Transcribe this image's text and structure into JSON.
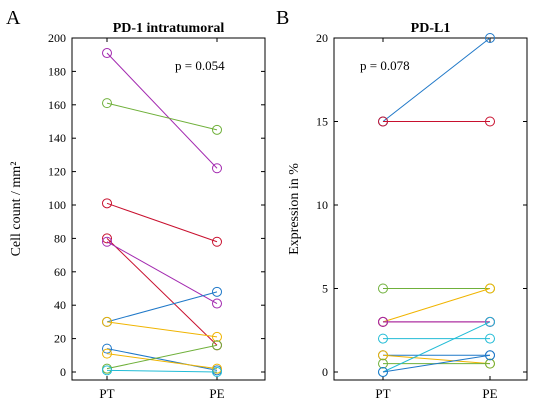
{
  "chart_data": [
    {
      "type": "line",
      "panel_label": "A",
      "title": "PD-1 intratumoral",
      "ylabel": "Cell count / mm²",
      "xlabel": "",
      "categories": [
        "PT",
        "PE"
      ],
      "ylim": [
        0,
        200
      ],
      "yticks": [
        0,
        20,
        40,
        60,
        80,
        100,
        120,
        140,
        160,
        180,
        200
      ],
      "grid": false,
      "legend": "none",
      "annotation": "p = 0.054",
      "series": [
        {
          "values": [
            191,
            122
          ],
          "color": "#a32ab0"
        },
        {
          "values": [
            161,
            145
          ],
          "color": "#6fb03a"
        },
        {
          "values": [
            101,
            78
          ],
          "color": "#c8102e"
        },
        {
          "values": [
            80,
            16
          ],
          "color": "#c8102e"
        },
        {
          "values": [
            78,
            41
          ],
          "color": "#a32ab0"
        },
        {
          "values": [
            30,
            48
          ],
          "color": "#1f78c8"
        },
        {
          "values": [
            30,
            21
          ],
          "color": "#f0b400"
        },
        {
          "values": [
            14,
            1
          ],
          "color": "#1f78c8"
        },
        {
          "values": [
            11,
            2
          ],
          "color": "#f0b400"
        },
        {
          "values": [
            2,
            16
          ],
          "color": "#6fb03a"
        },
        {
          "values": [
            1,
            0
          ],
          "color": "#22bcd6"
        }
      ]
    },
    {
      "type": "line",
      "panel_label": "B",
      "title": "PD-L1",
      "ylabel": "Expression in %",
      "xlabel": "",
      "categories": [
        "PT",
        "PE"
      ],
      "ylim": [
        0,
        20
      ],
      "yticks": [
        0,
        5,
        10,
        15,
        20
      ],
      "grid": false,
      "legend": "none",
      "annotation": "p = 0.078",
      "series": [
        {
          "values": [
            15,
            20
          ],
          "color": "#1f78c8"
        },
        {
          "values": [
            15,
            15
          ],
          "color": "#c8102e"
        },
        {
          "values": [
            5,
            5
          ],
          "color": "#6fb03a"
        },
        {
          "values": [
            3,
            5
          ],
          "color": "#f0b400"
        },
        {
          "values": [
            3,
            3
          ],
          "color": "#c8102e"
        },
        {
          "values": [
            3,
            3
          ],
          "color": "#a32ab0"
        },
        {
          "values": [
            2,
            2
          ],
          "color": "#22bcd6"
        },
        {
          "values": [
            1,
            1
          ],
          "color": "#1f78c8"
        },
        {
          "values": [
            1,
            0.5
          ],
          "color": "#f0b400"
        },
        {
          "values": [
            0.5,
            0.5
          ],
          "color": "#6fb03a"
        },
        {
          "values": [
            0,
            3
          ],
          "color": "#22bcd6"
        },
        {
          "values": [
            0,
            1
          ],
          "color": "#1f78c8"
        }
      ]
    }
  ]
}
